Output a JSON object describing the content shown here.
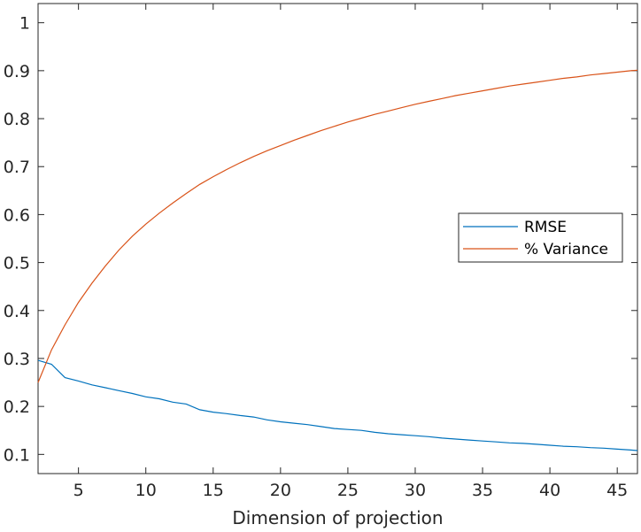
{
  "chart_data": {
    "type": "line",
    "title": "",
    "xlabel": "Dimension of projection",
    "ylabel": "",
    "xlim": [
      2,
      46.5
    ],
    "ylim": [
      0.06,
      1.04
    ],
    "xticks": [
      5,
      10,
      15,
      20,
      25,
      30,
      35,
      40,
      45
    ],
    "yticks": [
      0.1,
      0.2,
      0.3,
      0.4,
      0.5,
      0.6,
      0.7,
      0.8,
      0.9,
      1
    ],
    "ytick_labels": [
      "0.1",
      "0.2",
      "0.3",
      "0.4",
      "0.5",
      "0.6",
      "0.7",
      "0.8",
      "0.9",
      "1"
    ],
    "grid": false,
    "legend_position": "center-right",
    "x": [
      2,
      3,
      4,
      5,
      6,
      7,
      8,
      9,
      10,
      11,
      12,
      13,
      14,
      15,
      16,
      17,
      18,
      19,
      20,
      21,
      22,
      23,
      24,
      25,
      26,
      27,
      28,
      29,
      30,
      31,
      32,
      33,
      34,
      35,
      36,
      37,
      38,
      39,
      40,
      41,
      42,
      43,
      44,
      45,
      46,
      46.5
    ],
    "series": [
      {
        "name": "RMSE",
        "color": "#0072BD",
        "values": [
          0.296,
          0.288,
          0.26,
          0.253,
          0.245,
          0.239,
          0.233,
          0.227,
          0.22,
          0.216,
          0.209,
          0.205,
          0.193,
          0.188,
          0.185,
          0.181,
          0.178,
          0.172,
          0.168,
          0.165,
          0.162,
          0.158,
          0.154,
          0.152,
          0.15,
          0.146,
          0.143,
          0.141,
          0.139,
          0.137,
          0.134,
          0.132,
          0.13,
          0.128,
          0.126,
          0.124,
          0.123,
          0.121,
          0.119,
          0.117,
          0.116,
          0.114,
          0.113,
          0.111,
          0.109,
          0.108
        ]
      },
      {
        "name": "% Variance",
        "color": "#D95319",
        "values": [
          0.25,
          0.318,
          0.37,
          0.417,
          0.457,
          0.493,
          0.526,
          0.555,
          0.58,
          0.603,
          0.624,
          0.644,
          0.663,
          0.679,
          0.694,
          0.708,
          0.721,
          0.733,
          0.744,
          0.755,
          0.765,
          0.775,
          0.784,
          0.793,
          0.801,
          0.809,
          0.816,
          0.823,
          0.83,
          0.836,
          0.842,
          0.848,
          0.853,
          0.858,
          0.863,
          0.868,
          0.872,
          0.876,
          0.88,
          0.884,
          0.887,
          0.891,
          0.894,
          0.897,
          0.9,
          0.901
        ]
      }
    ]
  }
}
